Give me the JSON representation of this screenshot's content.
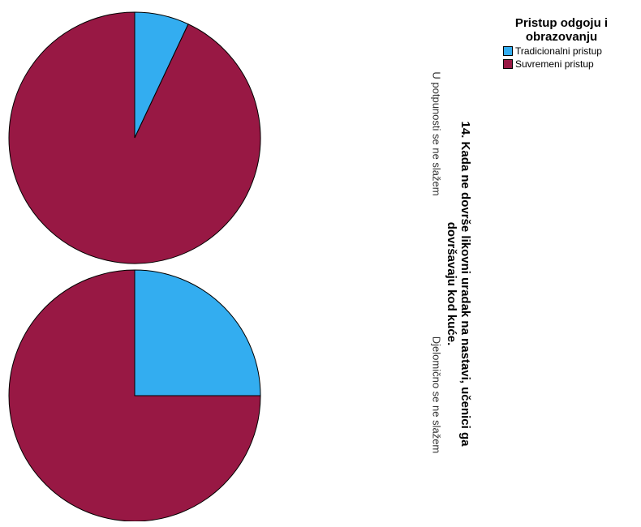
{
  "chart_data": {
    "type": "pie",
    "title_lines": [
      "14. Kada ne dovrše likovni uradak na nastavi, učenici ga",
      "dovršavaju kod kuće."
    ],
    "legend_title_lines": [
      "Pristup odgoju i",
      "obrazovanju"
    ],
    "legend_position": "top-right",
    "series_names": [
      "Tradicionalni pristup",
      "Suvremeni pristup"
    ],
    "colors": {
      "Tradicionalni pristup": "#33adf0",
      "Suvremeni pristup": "#981844"
    },
    "panels": [
      {
        "label": "U potpunosti se ne slažem",
        "values": [
          7,
          93
        ]
      },
      {
        "label": "Djelomično se ne slažem",
        "values": [
          25,
          75
        ]
      }
    ]
  }
}
